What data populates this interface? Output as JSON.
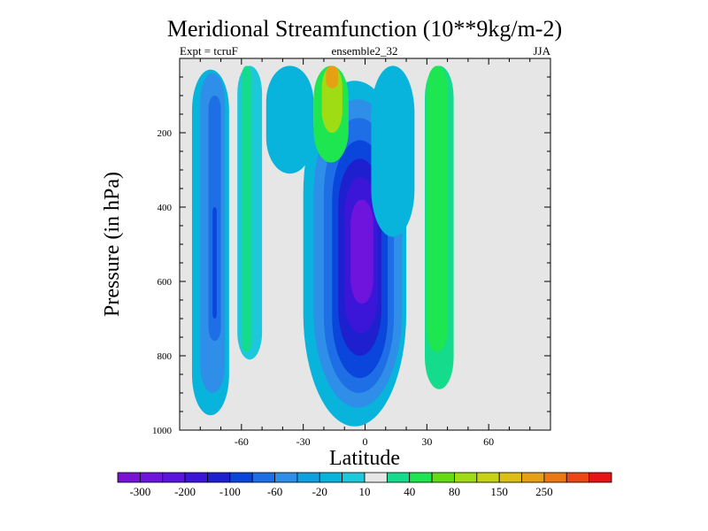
{
  "chart_data": {
    "type": "heatmap",
    "title": "Meridional Streamfunction (10**9kg/m-2)",
    "annotations": {
      "left": "Expt = tcruF",
      "center": "ensemble2_32",
      "right": "JJA"
    },
    "xlabel": "Latitude",
    "ylabel": "Pressure (in hPa)",
    "xlim": [
      -90,
      90
    ],
    "ylim": [
      1000,
      0
    ],
    "y_reversed": true,
    "grid": false,
    "x_ticks": [
      {
        "value": -60,
        "label": "-60"
      },
      {
        "value": -30,
        "label": "-30"
      },
      {
        "value": 0,
        "label": "0"
      },
      {
        "value": 30,
        "label": "30"
      },
      {
        "value": 60,
        "label": "60"
      }
    ],
    "y_ticks": [
      {
        "value": 200,
        "label": "200"
      },
      {
        "value": 400,
        "label": "400"
      },
      {
        "value": 600,
        "label": "600"
      },
      {
        "value": 800,
        "label": "800"
      },
      {
        "value": 1000,
        "label": "1000"
      }
    ],
    "background_color": "#e6e6e6",
    "colorbar": {
      "placement": "bottom",
      "colors": [
        "#7a12d6",
        "#6f14dc",
        "#5a14de",
        "#3c16d8",
        "#1e20d0",
        "#0a46dc",
        "#1e6ee6",
        "#2e8ee8",
        "#0fa0e0",
        "#08b4dc",
        "#1ec8dc",
        "#e6e6e6",
        "#14dc8c",
        "#1ee650",
        "#64dc14",
        "#a0dc14",
        "#c8d214",
        "#dcbe14",
        "#e6a014",
        "#eb7814",
        "#eb4614",
        "#e61414"
      ],
      "labels": [
        {
          "after_box": 1,
          "text": "-300"
        },
        {
          "after_box": 3,
          "text": "-200"
        },
        {
          "after_box": 5,
          "text": "-100"
        },
        {
          "after_box": 7,
          "text": "-60"
        },
        {
          "after_box": 9,
          "text": "-20"
        },
        {
          "after_box": 11,
          "text": "10"
        },
        {
          "after_box": 13,
          "text": "40"
        },
        {
          "after_box": 15,
          "text": "80"
        },
        {
          "after_box": 17,
          "text": "150"
        },
        {
          "after_box": 19,
          "text": "250"
        }
      ]
    },
    "cells": [
      {
        "name": "southern-outer-cell-edge",
        "lat": [
          -84,
          -66
        ],
        "p": [
          30,
          960
        ],
        "color": "#08b4dc"
      },
      {
        "name": "southern-outer-cell",
        "lat": [
          -80,
          -68
        ],
        "p": [
          40,
          900
        ],
        "color": "#2e8ee8"
      },
      {
        "name": "southern-outer-cell-inner",
        "lat": [
          -76,
          -70
        ],
        "p": [
          100,
          760
        ],
        "color": "#1e6ee6"
      },
      {
        "name": "southern-outer-cell-core",
        "lat": [
          -74,
          -72
        ],
        "p": [
          400,
          700
        ],
        "color": "#0a46dc"
      },
      {
        "name": "southern-positive-cell",
        "lat": [
          -62,
          -50
        ],
        "p": [
          20,
          810
        ],
        "color": "#1ec8dc"
      },
      {
        "name": "southern-positive-cell-inner",
        "lat": [
          -60,
          -55
        ],
        "p": [
          20,
          790
        ],
        "color": "#14dc8c"
      },
      {
        "name": "upper-southern-cell",
        "lat": [
          -48,
          -25
        ],
        "p": [
          20,
          310
        ],
        "color": "#08b4dc"
      },
      {
        "name": "winter-hadley-cell-edge",
        "lat": [
          -30,
          20
        ],
        "p": [
          60,
          990
        ],
        "color": "#08b4dc"
      },
      {
        "name": "winter-hadley-cell-1",
        "lat": [
          -25,
          18
        ],
        "p": [
          110,
          940
        ],
        "color": "#2e8ee8"
      },
      {
        "name": "winter-hadley-cell-2",
        "lat": [
          -20,
          14
        ],
        "p": [
          160,
          900
        ],
        "color": "#1e6ee6"
      },
      {
        "name": "winter-hadley-cell-3",
        "lat": [
          -16,
          11
        ],
        "p": [
          220,
          860
        ],
        "color": "#0a46dc"
      },
      {
        "name": "winter-hadley-cell-4",
        "lat": [
          -13,
          8
        ],
        "p": [
          270,
          800
        ],
        "color": "#1e20d0"
      },
      {
        "name": "winter-hadley-cell-5",
        "lat": [
          -10,
          6
        ],
        "p": [
          320,
          740
        ],
        "color": "#3c16d8"
      },
      {
        "name": "winter-hadley-cell-core",
        "lat": [
          -7,
          4
        ],
        "p": [
          380,
          660
        ],
        "color": "#6f14dc"
      },
      {
        "name": "stratospheric-cell",
        "lat": [
          -25,
          -8
        ],
        "p": [
          20,
          280
        ],
        "color": "#1ee650"
      },
      {
        "name": "stratospheric-cell-inner",
        "lat": [
          -21,
          -11
        ],
        "p": [
          20,
          200
        ],
        "color": "#a0dc14"
      },
      {
        "name": "stratospheric-cell-core",
        "lat": [
          -19,
          -13
        ],
        "p": [
          20,
          80
        ],
        "color": "#e6a014"
      },
      {
        "name": "northern-negative-cell",
        "lat": [
          3,
          24
        ],
        "p": [
          20,
          480
        ],
        "color": "#08b4dc"
      },
      {
        "name": "northern-positive-cell",
        "lat": [
          29,
          43
        ],
        "p": [
          20,
          890
        ],
        "color": "#14dc8c"
      },
      {
        "name": "northern-positive-cell-inner",
        "lat": [
          30,
          40
        ],
        "p": [
          20,
          790
        ],
        "color": "#1ee650"
      }
    ]
  }
}
